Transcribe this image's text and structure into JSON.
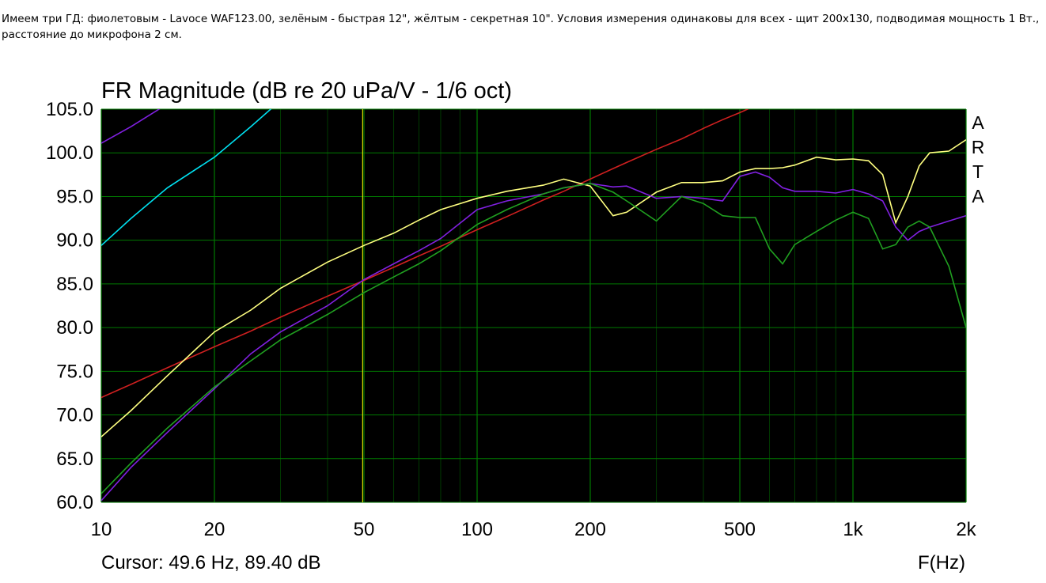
{
  "post_text": "Имеем три ГД: фиолетовым - Lavoce WAF123.00, зелёным - быстрая 12\", жёлтым - секретная 10\". Условия измерения одинаковы для всех - щит 200х130, подводимая мощность 1 Вт., расстояние до микрофона 2 см.",
  "chart_data": {
    "type": "line",
    "title": "FR Magnitude (dB re 20 uPa/V - 1/6 oct)",
    "x_label": "F(Hz)",
    "side_label": "ARTA",
    "cursor": {
      "label": "Cursor: 49.6 Hz, 89.40 dB",
      "x": 49.6,
      "color": "#e0e000"
    },
    "xscale": "log",
    "grid": true,
    "background": "#000000",
    "grid_color": "#007a00",
    "xlim": [
      10,
      2000
    ],
    "ylim": [
      60,
      105
    ],
    "xticks": [
      10,
      20,
      50,
      100,
      200,
      500,
      {
        "value": 1000,
        "label": "1k"
      },
      {
        "value": 2000,
        "label": "2k"
      }
    ],
    "yticks": [
      {
        "value": 60,
        "label": "60.0"
      },
      {
        "value": 65,
        "label": "65.0"
      },
      {
        "value": 70,
        "label": "70.0"
      },
      {
        "value": 75,
        "label": "75.0"
      },
      {
        "value": 80,
        "label": "80.0"
      },
      {
        "value": 85,
        "label": "85.0"
      },
      {
        "value": 90,
        "label": "90.0"
      },
      {
        "value": 95,
        "label": "95.0"
      },
      {
        "value": 100,
        "label": "100.0"
      },
      {
        "value": 105,
        "label": "105.0"
      }
    ],
    "x": [
      10,
      12,
      15,
      20,
      25,
      30,
      40,
      50,
      60,
      70,
      80,
      100,
      120,
      150,
      170,
      200,
      230,
      250,
      300,
      350,
      400,
      450,
      500,
      550,
      600,
      650,
      700,
      800,
      900,
      1000,
      1100,
      1200,
      1300,
      1400,
      1500,
      1600,
      1800,
      2000
    ],
    "series": [
      {
        "color": "#00e0f0",
        "values": [
          89.4,
          92.5,
          96,
          99.5,
          103,
          106,
          null,
          null,
          null,
          null,
          null,
          null,
          null,
          null,
          null,
          null,
          null,
          null,
          null,
          null,
          null,
          null,
          null,
          null,
          null,
          null,
          null,
          null,
          null,
          null,
          null,
          null,
          null,
          null,
          null,
          null,
          null,
          null
        ]
      },
      {
        "color": "#8020e0",
        "values": [
          101.1,
          103,
          105.6,
          null,
          null,
          null,
          null,
          null,
          null,
          null,
          null,
          null,
          null,
          null,
          null,
          null,
          null,
          null,
          null,
          null,
          null,
          null,
          null,
          null,
          null,
          null,
          null,
          null,
          null,
          null,
          null,
          null,
          null,
          null,
          null,
          null,
          null,
          null
        ]
      },
      {
        "color": "#d02020",
        "values": [
          72,
          73.5,
          75.4,
          77.8,
          79.6,
          81.2,
          83.6,
          85.4,
          86.9,
          88.2,
          89.3,
          91.2,
          92.7,
          94.6,
          95.6,
          97,
          98.2,
          98.9,
          100.4,
          101.6,
          102.8,
          103.8,
          104.6,
          105.4,
          null,
          null,
          null,
          null,
          null,
          null,
          null,
          null,
          null,
          null,
          null,
          null,
          null,
          null
        ]
      },
      {
        "color": "#ffff80",
        "values": [
          67.5,
          70.5,
          74.5,
          79.5,
          82,
          84.5,
          87.5,
          89.4,
          90.8,
          92.3,
          93.5,
          94.8,
          95.6,
          96.3,
          97,
          96.2,
          92.8,
          93.2,
          95.5,
          96.6,
          96.6,
          96.8,
          97.8,
          98.2,
          98.2,
          98.3,
          98.6,
          99.5,
          99.2,
          99.3,
          99.1,
          97.5,
          92,
          95,
          98.5,
          100,
          100.2,
          101.5
        ]
      },
      {
        "color": "#8020e0",
        "values": [
          60.2,
          64,
          68,
          73,
          77,
          79.5,
          82.5,
          85.5,
          87.3,
          88.8,
          90.2,
          93.5,
          94.5,
          95.3,
          96,
          96.5,
          96.1,
          96.2,
          94.8,
          95,
          94.8,
          94.5,
          97.3,
          97.8,
          97.2,
          96,
          95.6,
          95.6,
          95.4,
          95.8,
          95.3,
          94.5,
          91.5,
          90,
          91,
          91.5,
          92.2,
          92.8
        ]
      },
      {
        "color": "#20a020",
        "values": [
          61,
          64.5,
          68.5,
          73.2,
          76.2,
          78.6,
          81.5,
          84,
          85.8,
          87.3,
          88.8,
          91.8,
          93.5,
          95.3,
          96,
          96.5,
          95.5,
          94.5,
          92.2,
          95,
          94.2,
          92.8,
          92.6,
          92.6,
          89,
          87.3,
          89.5,
          91,
          92.3,
          93.2,
          92.5,
          89,
          89.5,
          91.5,
          92.2,
          91.5,
          87,
          80
        ]
      }
    ]
  }
}
